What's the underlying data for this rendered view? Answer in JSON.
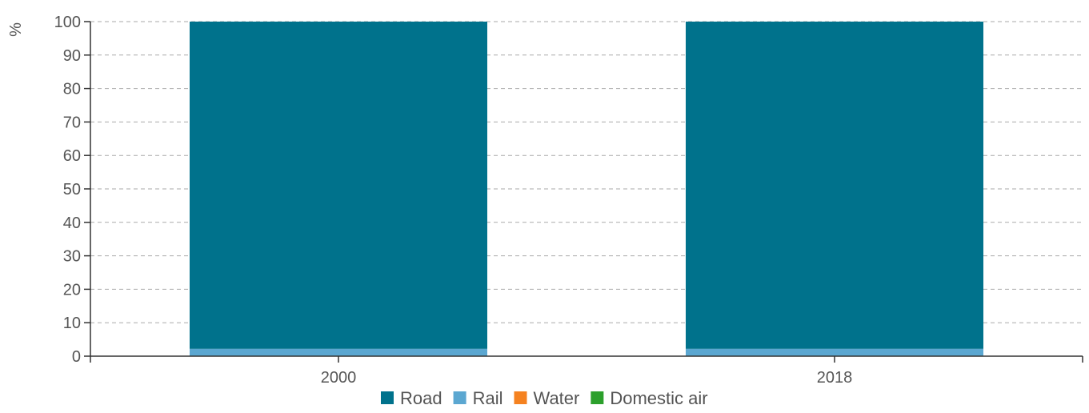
{
  "chart_data": {
    "type": "bar",
    "stacked": true,
    "categories": [
      "2000",
      "2018"
    ],
    "series": [
      {
        "name": "Road",
        "values": [
          97.8,
          97.8
        ],
        "color": "#00728c"
      },
      {
        "name": "Rail",
        "values": [
          2.2,
          2.2
        ],
        "color": "#5ba7d1"
      },
      {
        "name": "Water",
        "values": [
          0,
          0
        ],
        "color": "#f58220"
      },
      {
        "name": "Domestic air",
        "values": [
          0,
          0
        ],
        "color": "#2ca02c"
      }
    ],
    "ylabel": "%",
    "ylim": [
      0,
      100
    ],
    "yticks": [
      0,
      10,
      20,
      30,
      40,
      50,
      60,
      70,
      80,
      90,
      100
    ],
    "grid": true,
    "legend_position": "bottom"
  }
}
